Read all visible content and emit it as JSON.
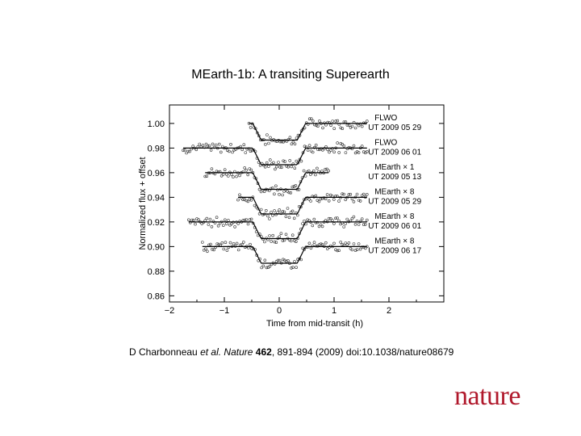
{
  "title": "MEarth-1b: A transiting Superearth",
  "caption": {
    "authors_prefix": "D Charbonneau ",
    "et_al": "et al.",
    "journal": "Nature",
    "volume": "462",
    "rest": ", 891-894 (2009) doi:10.1038/nature08679"
  },
  "logo_text": "nature",
  "logo_color": "#b0182b",
  "chart_data": {
    "type": "scatter",
    "title": "",
    "xlabel": "Time from mid-transit (h)",
    "ylabel": "Normalized flux + offset",
    "xlim": [
      -2,
      3
    ],
    "ylim": [
      0.855,
      1.015
    ],
    "x_ticks": [
      "−2",
      "−1",
      "0",
      "1",
      "2"
    ],
    "x_tick_values": [
      -2,
      -1,
      0,
      1,
      2
    ],
    "y_ticks": [
      "0.86",
      "0.88",
      "0.90",
      "0.92",
      "0.94",
      "0.96",
      "0.98",
      "1.00"
    ],
    "y_tick_values": [
      0.86,
      0.88,
      0.9,
      0.92,
      0.94,
      0.96,
      0.98,
      1.0
    ],
    "grid": false,
    "transit": {
      "depth": 0.0135,
      "ingress_start": -0.48,
      "ingress_end": -0.33,
      "egress_start": 0.33,
      "egress_end": 0.48
    },
    "series": [
      {
        "name": "FLWO UT 2009 05 29",
        "label_line1": "FLWO",
        "label_line2": "UT 2009 05 29",
        "baseline": 1.0,
        "x_start": -0.55,
        "x_end": 1.6
      },
      {
        "name": "FLWO UT 2009 06 01",
        "label_line1": "FLWO",
        "label_line2": "UT 2009 06 01",
        "baseline": 0.98,
        "x_start": -1.75,
        "x_end": 1.6
      },
      {
        "name": "MEarth × 1 UT 2009 05 13",
        "label_line1": "MEarth × 1",
        "label_line2": "UT 2009 05 13",
        "baseline": 0.96,
        "x_start": -1.35,
        "x_end": 0.9
      },
      {
        "name": "MEarth × 8 UT 2009 05 29",
        "label_line1": "MEarth × 8",
        "label_line2": "UT 2009 05 29",
        "baseline": 0.94,
        "x_start": -0.75,
        "x_end": 1.6
      },
      {
        "name": "MEarth × 8 UT 2009 06 01",
        "label_line1": "MEarth × 8",
        "label_line2": "UT 2009 06 01",
        "baseline": 0.92,
        "x_start": -1.65,
        "x_end": 1.6
      },
      {
        "name": "MEarth × 8 UT 2009 06 17",
        "label_line1": "MEarth × 8",
        "label_line2": "UT 2009 06 17",
        "baseline": 0.9,
        "x_start": -1.4,
        "x_end": 1.6
      }
    ]
  }
}
